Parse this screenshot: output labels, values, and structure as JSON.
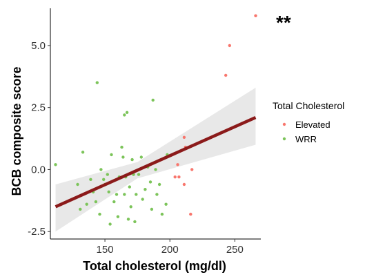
{
  "chart_data": {
    "type": "scatter",
    "title": "",
    "xlabel": "Total cholesterol (mg/dl)",
    "ylabel": "BCB composite score",
    "xlim": [
      108,
      270
    ],
    "ylim": [
      -2.8,
      6.5
    ],
    "x_ticks": [
      150,
      200,
      250
    ],
    "y_ticks": [
      -2.5,
      0.0,
      2.5,
      5.0
    ],
    "x_tick_labels": [
      "150",
      "200",
      "250"
    ],
    "y_tick_labels": [
      "-2.5",
      "0.0",
      "2.5",
      "5.0"
    ],
    "annotation": "**",
    "legend": {
      "title": "Total Cholesterol",
      "placement": "right",
      "entries": [
        {
          "label": "Elevated",
          "color": "#f8766d"
        },
        {
          "label": "WRR",
          "color": "#7cc45a"
        }
      ]
    },
    "grid": false,
    "series": [
      {
        "name": "Elevated",
        "color": "#f8766d",
        "points": [
          [
            266,
            6.2
          ],
          [
            246,
            5.0
          ],
          [
            243,
            3.8
          ],
          [
            211,
            1.3
          ],
          [
            212,
            0.9
          ],
          [
            206,
            0.2
          ],
          [
            217,
            0.0
          ],
          [
            204,
            -0.3
          ],
          [
            207,
            -0.3
          ],
          [
            211,
            -0.6
          ],
          [
            216,
            -1.8
          ]
        ]
      },
      {
        "name": "WRR",
        "color": "#7cc45a",
        "points": [
          [
            112,
            0.2
          ],
          [
            129,
            -0.6
          ],
          [
            131,
            -1.6
          ],
          [
            133,
            0.7
          ],
          [
            136,
            -1.4
          ],
          [
            139,
            -0.4
          ],
          [
            141,
            -0.9
          ],
          [
            143,
            -1.3
          ],
          [
            144,
            3.5
          ],
          [
            146,
            -1.8
          ],
          [
            147,
            0.0
          ],
          [
            149,
            -0.4
          ],
          [
            150,
            -0.6
          ],
          [
            152,
            -0.2
          ],
          [
            153,
            -0.9
          ],
          [
            154,
            -2.2
          ],
          [
            155,
            0.6
          ],
          [
            157,
            -1.3
          ],
          [
            159,
            -1.0
          ],
          [
            160,
            -1.9
          ],
          [
            161,
            -0.3
          ],
          [
            163,
            0.9
          ],
          [
            164,
            0.5
          ],
          [
            165,
            -1.0
          ],
          [
            165,
            2.2
          ],
          [
            166,
            -0.3
          ],
          [
            167,
            2.3
          ],
          [
            168,
            -2.0
          ],
          [
            169,
            -0.7
          ],
          [
            170,
            -1.5
          ],
          [
            171,
            0.4
          ],
          [
            172,
            -0.2
          ],
          [
            173,
            -2.1
          ],
          [
            174,
            -1.0
          ],
          [
            176,
            -0.2
          ],
          [
            178,
            0.5
          ],
          [
            179,
            -1.2
          ],
          [
            181,
            -0.8
          ],
          [
            183,
            0.1
          ],
          [
            185,
            -0.5
          ],
          [
            186,
            -1.6
          ],
          [
            187,
            2.8
          ],
          [
            189,
            0.0
          ],
          [
            190,
            -1.0
          ],
          [
            192,
            -0.6
          ],
          [
            194,
            -1.8
          ],
          [
            197,
            -1.4
          ],
          [
            198,
            0.6
          ]
        ]
      }
    ],
    "fit": {
      "color": "#8b1a1a",
      "x": [
        112,
        266
      ],
      "y": [
        -1.5,
        2.1
      ],
      "ci_lower": [
        -2.5,
        1.0
      ],
      "ci_mid_x": 175,
      "ci_mid_halfwidth": 0.33,
      "ci_upper": [
        -0.6,
        3.3
      ]
    }
  }
}
